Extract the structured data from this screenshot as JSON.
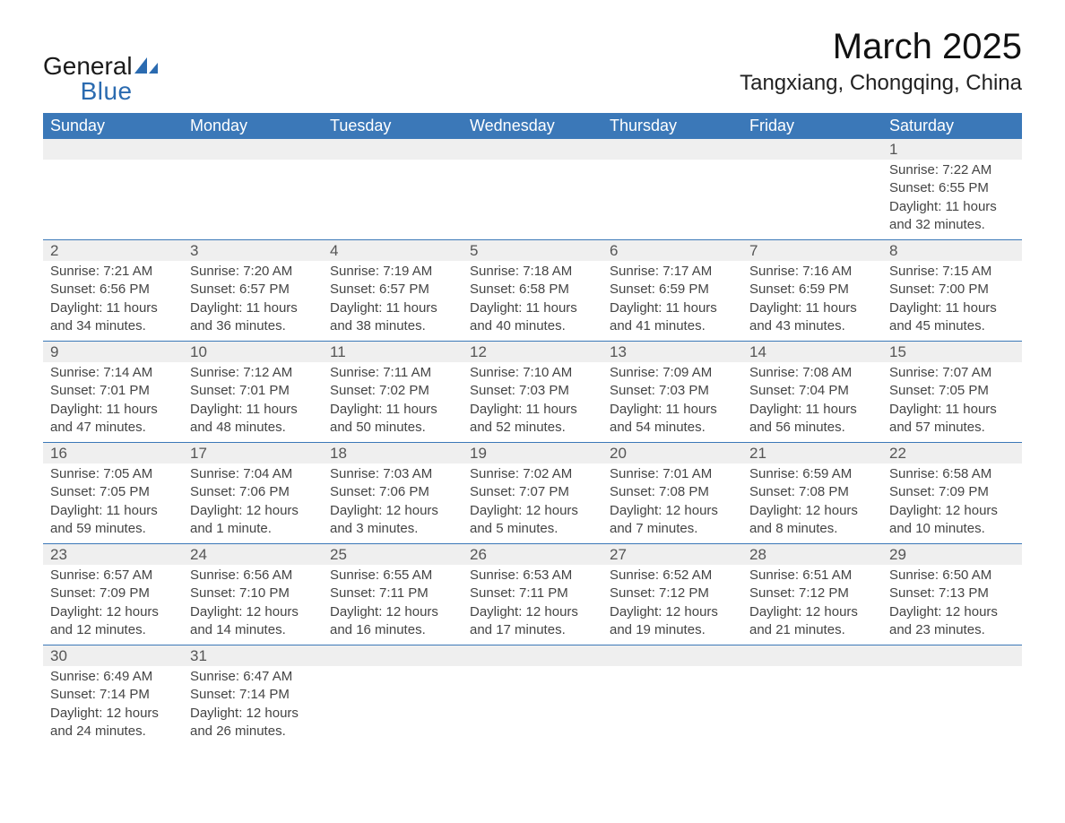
{
  "logo": {
    "line1": "General",
    "line2": "Blue"
  },
  "title": "March 2025",
  "location": "Tangxiang, Chongqing, China",
  "colors": {
    "header_bg": "#3b78b8",
    "header_text": "#ffffff",
    "daynum_bg": "#efefef",
    "rule": "#3b78b8",
    "text": "#444444",
    "logo_blue": "#2b6bb0"
  },
  "weekdays": [
    "Sunday",
    "Monday",
    "Tuesday",
    "Wednesday",
    "Thursday",
    "Friday",
    "Saturday"
  ],
  "weeks": [
    [
      null,
      null,
      null,
      null,
      null,
      null,
      {
        "n": "1",
        "sr": "7:22 AM",
        "ss": "6:55 PM",
        "dl": "11 hours and 32 minutes."
      }
    ],
    [
      {
        "n": "2",
        "sr": "7:21 AM",
        "ss": "6:56 PM",
        "dl": "11 hours and 34 minutes."
      },
      {
        "n": "3",
        "sr": "7:20 AM",
        "ss": "6:57 PM",
        "dl": "11 hours and 36 minutes."
      },
      {
        "n": "4",
        "sr": "7:19 AM",
        "ss": "6:57 PM",
        "dl": "11 hours and 38 minutes."
      },
      {
        "n": "5",
        "sr": "7:18 AM",
        "ss": "6:58 PM",
        "dl": "11 hours and 40 minutes."
      },
      {
        "n": "6",
        "sr": "7:17 AM",
        "ss": "6:59 PM",
        "dl": "11 hours and 41 minutes."
      },
      {
        "n": "7",
        "sr": "7:16 AM",
        "ss": "6:59 PM",
        "dl": "11 hours and 43 minutes."
      },
      {
        "n": "8",
        "sr": "7:15 AM",
        "ss": "7:00 PM",
        "dl": "11 hours and 45 minutes."
      }
    ],
    [
      {
        "n": "9",
        "sr": "7:14 AM",
        "ss": "7:01 PM",
        "dl": "11 hours and 47 minutes."
      },
      {
        "n": "10",
        "sr": "7:12 AM",
        "ss": "7:01 PM",
        "dl": "11 hours and 48 minutes."
      },
      {
        "n": "11",
        "sr": "7:11 AM",
        "ss": "7:02 PM",
        "dl": "11 hours and 50 minutes."
      },
      {
        "n": "12",
        "sr": "7:10 AM",
        "ss": "7:03 PM",
        "dl": "11 hours and 52 minutes."
      },
      {
        "n": "13",
        "sr": "7:09 AM",
        "ss": "7:03 PM",
        "dl": "11 hours and 54 minutes."
      },
      {
        "n": "14",
        "sr": "7:08 AM",
        "ss": "7:04 PM",
        "dl": "11 hours and 56 minutes."
      },
      {
        "n": "15",
        "sr": "7:07 AM",
        "ss": "7:05 PM",
        "dl": "11 hours and 57 minutes."
      }
    ],
    [
      {
        "n": "16",
        "sr": "7:05 AM",
        "ss": "7:05 PM",
        "dl": "11 hours and 59 minutes."
      },
      {
        "n": "17",
        "sr": "7:04 AM",
        "ss": "7:06 PM",
        "dl": "12 hours and 1 minute."
      },
      {
        "n": "18",
        "sr": "7:03 AM",
        "ss": "7:06 PM",
        "dl": "12 hours and 3 minutes."
      },
      {
        "n": "19",
        "sr": "7:02 AM",
        "ss": "7:07 PM",
        "dl": "12 hours and 5 minutes."
      },
      {
        "n": "20",
        "sr": "7:01 AM",
        "ss": "7:08 PM",
        "dl": "12 hours and 7 minutes."
      },
      {
        "n": "21",
        "sr": "6:59 AM",
        "ss": "7:08 PM",
        "dl": "12 hours and 8 minutes."
      },
      {
        "n": "22",
        "sr": "6:58 AM",
        "ss": "7:09 PM",
        "dl": "12 hours and 10 minutes."
      }
    ],
    [
      {
        "n": "23",
        "sr": "6:57 AM",
        "ss": "7:09 PM",
        "dl": "12 hours and 12 minutes."
      },
      {
        "n": "24",
        "sr": "6:56 AM",
        "ss": "7:10 PM",
        "dl": "12 hours and 14 minutes."
      },
      {
        "n": "25",
        "sr": "6:55 AM",
        "ss": "7:11 PM",
        "dl": "12 hours and 16 minutes."
      },
      {
        "n": "26",
        "sr": "6:53 AM",
        "ss": "7:11 PM",
        "dl": "12 hours and 17 minutes."
      },
      {
        "n": "27",
        "sr": "6:52 AM",
        "ss": "7:12 PM",
        "dl": "12 hours and 19 minutes."
      },
      {
        "n": "28",
        "sr": "6:51 AM",
        "ss": "7:12 PM",
        "dl": "12 hours and 21 minutes."
      },
      {
        "n": "29",
        "sr": "6:50 AM",
        "ss": "7:13 PM",
        "dl": "12 hours and 23 minutes."
      }
    ],
    [
      {
        "n": "30",
        "sr": "6:49 AM",
        "ss": "7:14 PM",
        "dl": "12 hours and 24 minutes."
      },
      {
        "n": "31",
        "sr": "6:47 AM",
        "ss": "7:14 PM",
        "dl": "12 hours and 26 minutes."
      },
      null,
      null,
      null,
      null,
      null
    ]
  ],
  "labels": {
    "sunrise": "Sunrise: ",
    "sunset": "Sunset: ",
    "daylight": "Daylight: "
  }
}
